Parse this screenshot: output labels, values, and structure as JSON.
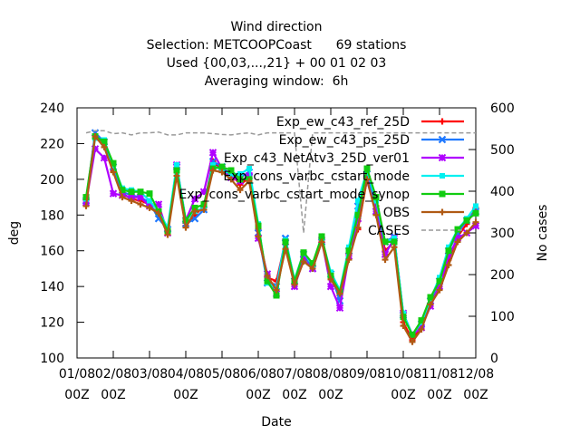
{
  "chart_data": {
    "type": "line",
    "title_lines": [
      "Wind direction",
      "Selection: METCOOPCoast      69 stations",
      "Used {00,03,...,21} + 00 01 02 03",
      "Averaging window:  6h"
    ],
    "xlabel": "Date",
    "ylabel": "deg",
    "y2label": "No cases",
    "ylim": [
      100,
      240
    ],
    "y2lim": [
      0,
      600
    ],
    "yticks": [
      100,
      120,
      140,
      160,
      180,
      200,
      220,
      240
    ],
    "y2ticks": [
      0,
      100,
      200,
      300,
      400,
      500,
      600
    ],
    "xlim": [
      0,
      11
    ],
    "xticks": [
      {
        "x": 0,
        "line1": "01/08",
        "line2": "00Z"
      },
      {
        "x": 1,
        "line1": "02/08",
        "line2": "00Z"
      },
      {
        "x": 2,
        "line1": "03/08",
        "line2": ""
      },
      {
        "x": 3,
        "line1": "04/08",
        "line2": "00Z"
      },
      {
        "x": 4,
        "line1": "05/08",
        "line2": ""
      },
      {
        "x": 5,
        "line1": "06/08",
        "line2": "00Z"
      },
      {
        "x": 6,
        "line1": "07/08",
        "line2": "00Z"
      },
      {
        "x": 7,
        "line1": "08/08",
        "line2": "00Z"
      },
      {
        "x": 8,
        "line1": "09/08",
        "line2": ""
      },
      {
        "x": 9,
        "line1": "10/08",
        "line2": "00Z"
      },
      {
        "x": 10,
        "line1": "11/08",
        "line2": "00Z"
      },
      {
        "x": 11,
        "line1": "12/08",
        "line2": "00Z"
      }
    ],
    "grid": false,
    "legend_position": "top-right",
    "x": [
      0.25,
      0.5,
      0.75,
      1.0,
      1.25,
      1.5,
      1.75,
      2.0,
      2.25,
      2.5,
      2.75,
      3.0,
      3.25,
      3.5,
      3.75,
      4.0,
      4.25,
      4.5,
      4.75,
      5.0,
      5.25,
      5.5,
      5.75,
      6.0,
      6.25,
      6.5,
      6.75,
      7.0,
      7.25,
      7.5,
      7.75,
      8.0,
      8.25,
      8.5,
      8.75,
      9.0,
      9.25,
      9.5,
      9.75,
      10.0,
      10.25,
      10.5,
      10.75,
      11.0
    ],
    "series": [
      {
        "name": "Exp_ew_c43_ref_25D",
        "color": "#ff0000",
        "marker": "plus",
        "values": [
          187,
          225,
          220,
          205,
          192,
          189,
          188,
          186,
          180,
          171,
          205,
          174,
          180,
          185,
          210,
          205,
          203,
          197,
          201,
          172,
          145,
          143,
          165,
          142,
          157,
          152,
          166,
          145,
          135,
          158,
          172,
          200,
          185,
          160,
          165,
          120,
          110,
          118,
          130,
          140,
          155,
          168,
          175,
          184
        ]
      },
      {
        "name": "Exp_ew_c43_ps_25D",
        "color": "#1e78ff",
        "marker": "cross",
        "values": [
          188,
          226,
          221,
          207,
          193,
          191,
          190,
          187,
          178,
          172,
          207,
          175,
          178,
          183,
          210,
          207,
          202,
          201,
          204,
          170,
          142,
          140,
          167,
          143,
          158,
          150,
          165,
          147,
          132,
          160,
          185,
          203,
          182,
          165,
          168,
          124,
          113,
          119,
          132,
          143,
          160,
          170,
          177,
          182
        ]
      },
      {
        "name": "Exp_c43_NetAtv3_25D_ver01",
        "color": "#b000ff",
        "marker": "star",
        "values": [
          187,
          217,
          212,
          192,
          191,
          190,
          190,
          185,
          186,
          170,
          208,
          177,
          189,
          193,
          215,
          206,
          201,
          199,
          202,
          167,
          147,
          136,
          165,
          140,
          155,
          150,
          166,
          140,
          128,
          157,
          178,
          199,
          182,
          158,
          167,
          125,
          113,
          117,
          129,
          140,
          157,
          167,
          170,
          174
        ]
      },
      {
        "name": "Exp_cons_varbc_cstart_mode",
        "color": "#00f0f0",
        "marker": "square",
        "values": [
          189,
          223,
          222,
          208,
          195,
          194,
          193,
          188,
          182,
          173,
          208,
          177,
          182,
          184,
          208,
          205,
          203,
          203,
          206,
          175,
          142,
          139,
          166,
          144,
          159,
          152,
          167,
          148,
          138,
          162,
          188,
          205,
          188,
          165,
          167,
          125,
          113,
          120,
          133,
          145,
          162,
          172,
          178,
          185
        ]
      },
      {
        "name": "Exp_cons_varbc_cstart_mode_synop",
        "color": "#11cc11",
        "marker": "square-filled",
        "values": [
          190,
          224,
          221,
          209,
          194,
          193,
          193,
          192,
          182,
          171,
          205,
          177,
          184,
          186,
          206,
          207,
          205,
          200,
          200,
          174,
          143,
          135,
          165,
          143,
          159,
          153,
          168,
          146,
          137,
          160,
          180,
          206,
          190,
          165,
          165,
          123,
          113,
          121,
          134,
          143,
          160,
          172,
          177,
          181
        ]
      },
      {
        "name": "OBS",
        "color": "#b05a14",
        "marker": "plus",
        "values": [
          185,
          224,
          218,
          204,
          190,
          188,
          186,
          184,
          181,
          169,
          202,
          173,
          182,
          183,
          205,
          204,
          200,
          194,
          199,
          168,
          146,
          138,
          161,
          141,
          154,
          150,
          165,
          144,
          136,
          155,
          173,
          200,
          180,
          155,
          162,
          118,
          109,
          116,
          130,
          138,
          152,
          165,
          170,
          176
        ]
      },
      {
        "name": "CASES",
        "color": "#999999",
        "marker": "none",
        "dashed": true,
        "axis": "y2",
        "values": [
          540,
          545,
          545,
          538,
          540,
          535,
          540,
          540,
          542,
          535,
          535,
          540,
          540,
          540,
          538,
          536,
          535,
          538,
          540,
          535,
          540,
          540,
          540,
          540,
          300,
          540,
          540,
          540,
          540,
          540,
          540,
          540,
          540,
          540,
          540,
          540,
          540,
          540,
          540,
          540,
          540,
          540,
          540,
          540
        ]
      }
    ]
  }
}
